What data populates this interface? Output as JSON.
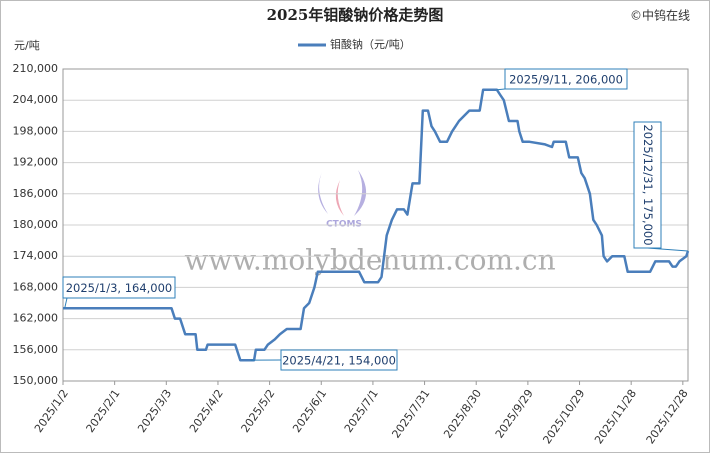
{
  "chart_data": {
    "type": "line",
    "title": "2025年钼酸钠价格走势图",
    "source": "©中钨在线",
    "y_label": "元/吨",
    "watermark": "www.molybdenum.com.cn",
    "logo_text": "CTOMS",
    "legend": "top",
    "grid": true,
    "x": [
      "2025/1/2",
      "2025/1/3",
      "2025/3/6",
      "2025/3/8",
      "2025/3/11",
      "2025/3/14",
      "2025/3/20",
      "2025/3/21",
      "2025/3/26",
      "2025/3/27",
      "2025/4/12",
      "2025/4/15",
      "2025/4/21",
      "2025/4/23",
      "2025/4/24",
      "2025/4/29",
      "2025/5/1",
      "2025/5/5",
      "2025/5/8",
      "2025/5/12",
      "2025/5/20",
      "2025/5/22",
      "2025/5/25",
      "2025/5/28",
      "2025/5/30",
      "2025/6/23",
      "2025/6/26",
      "2025/7/4",
      "2025/7/6",
      "2025/7/9",
      "2025/7/12",
      "2025/7/15",
      "2025/7/19",
      "2025/7/21",
      "2025/7/24",
      "2025/7/28",
      "2025/7/30",
      "2025/8/2",
      "2025/8/4",
      "2025/8/6",
      "2025/8/9",
      "2025/8/13",
      "2025/8/16",
      "2025/8/18",
      "2025/8/20",
      "2025/8/23",
      "2025/8/26",
      "2025/9/1",
      "2025/9/3",
      "2025/9/11",
      "2025/9/13",
      "2025/9/15",
      "2025/9/18",
      "2025/9/23",
      "2025/9/24",
      "2025/9/26",
      "2025/9/30",
      "2025/10/9",
      "2025/10/13",
      "2025/10/14",
      "2025/10/21",
      "2025/10/23",
      "2025/10/28",
      "2025/10/30",
      "2025/11/1",
      "2025/11/4",
      "2025/11/6",
      "2025/11/8",
      "2025/11/11",
      "2025/11/12",
      "2025/11/14",
      "2025/11/17",
      "2025/11/24",
      "2025/11/26",
      "2025/12/9",
      "2025/12/12",
      "2025/12/20",
      "2025/12/22",
      "2025/12/24",
      "2025/12/26",
      "2025/12/30",
      "2025/12/31"
    ],
    "series": [
      {
        "name": "钼酸钠（元/吨）",
        "color": "#4a7ebb",
        "values": [
          164000,
          164000,
          164000,
          162000,
          162000,
          159000,
          159000,
          156000,
          156000,
          157000,
          157000,
          154000,
          154000,
          154000,
          156000,
          156000,
          157000,
          158000,
          159000,
          160000,
          160000,
          164000,
          165000,
          168000,
          171000,
          171000,
          169000,
          169000,
          170000,
          178000,
          181000,
          183000,
          183000,
          182000,
          188000,
          188000,
          202000,
          202000,
          199000,
          198000,
          196000,
          196000,
          198000,
          199000,
          200000,
          201000,
          202000,
          202000,
          206000,
          206000,
          205000,
          204000,
          200000,
          200000,
          198000,
          196000,
          196000,
          195500,
          195000,
          196000,
          196000,
          193000,
          193000,
          190000,
          189000,
          186000,
          181000,
          180000,
          178000,
          174000,
          173000,
          174000,
          174000,
          171000,
          171000,
          173000,
          173000,
          172000,
          172000,
          173000,
          174000,
          175000
        ]
      }
    ],
    "xlim": [
      "2025/1/2",
      "2025/12/31"
    ],
    "xticks": [
      "2025/1/2",
      "2025/2/1",
      "2025/3/3",
      "2025/4/2",
      "2025/5/2",
      "2025/6/1",
      "2025/7/1",
      "2025/7/31",
      "2025/8/30",
      "2025/9/29",
      "2025/10/29",
      "2025/11/28",
      "2025/12/28"
    ],
    "ylim": [
      150000,
      210000
    ],
    "yticks": [
      {
        "value": 150000,
        "label": "150,000"
      },
      {
        "value": 156000,
        "label": "156,000"
      },
      {
        "value": 162000,
        "label": "162,000"
      },
      {
        "value": 168000,
        "label": "168,000"
      },
      {
        "value": 174000,
        "label": "174,000"
      },
      {
        "value": 180000,
        "label": "180,000"
      },
      {
        "value": 186000,
        "label": "186,000"
      },
      {
        "value": 192000,
        "label": "192,000"
      },
      {
        "value": 198000,
        "label": "198,000"
      },
      {
        "value": 204000,
        "label": "204,000"
      },
      {
        "value": 210000,
        "label": "210,000"
      }
    ],
    "annotations": [
      {
        "text": "2025/1/3, 164,000",
        "x": "2025/1/3",
        "y": 164000
      },
      {
        "text": "2025/4/21, 154,000",
        "x": "2025/4/21",
        "y": 154000
      },
      {
        "text": "2025/9/11, 206,000",
        "x": "2025/9/11",
        "y": 206000
      },
      {
        "text": "2025/12/31, 175,000",
        "x": "2025/12/31",
        "y": 175000
      }
    ]
  }
}
